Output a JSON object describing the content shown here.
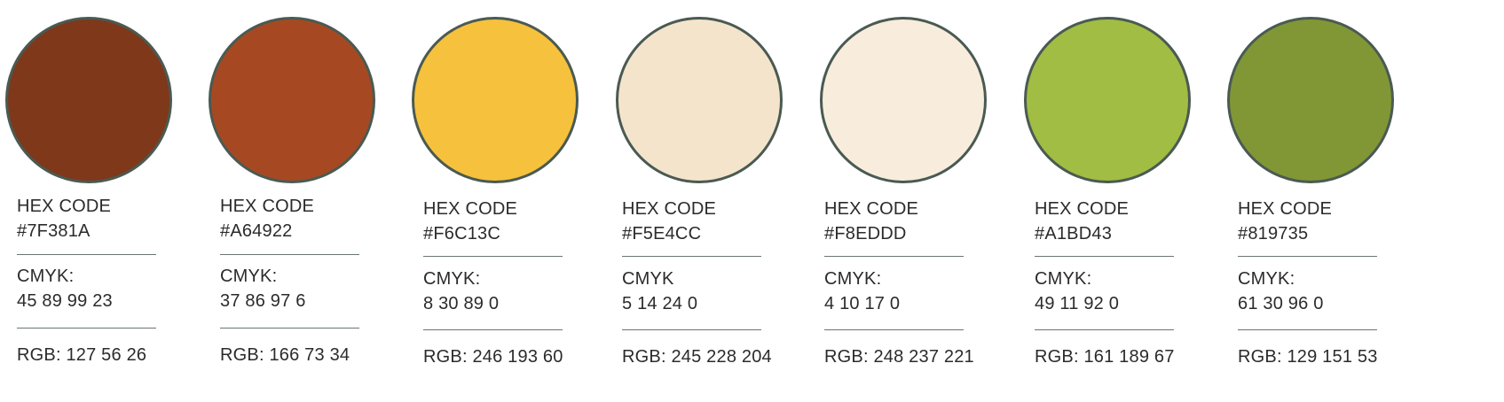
{
  "swatches": [
    {
      "color": "#7F381A",
      "hex_heading": "HEX CODE",
      "hex_value": "#7F381A",
      "cmyk_heading": "CMYK:",
      "cmyk_value": "45 89 99 23",
      "rgb": "RGB: 127 56 26"
    },
    {
      "color": "#A64922",
      "hex_heading": "HEX CODE",
      "hex_value": "#A64922",
      "cmyk_heading": "CMYK:",
      "cmyk_value": "37 86 97 6",
      "rgb": "RGB: 166 73 34"
    },
    {
      "color": "#F6C13C",
      "hex_heading": "HEX CODE",
      "hex_value": "#F6C13C",
      "cmyk_heading": "CMYK:",
      "cmyk_value": "8 30 89 0",
      "rgb": "RGB: 246 193 60"
    },
    {
      "color": "#F5E4CC",
      "hex_heading": "HEX CODE",
      "hex_value": "#F5E4CC",
      "cmyk_heading": "CMYK",
      "cmyk_value": "5 14 24 0",
      "rgb": "RGB: 245 228 204"
    },
    {
      "color": "#F8EDDD",
      "hex_heading": "HEX CODE",
      "hex_value": "#F8EDDD",
      "cmyk_heading": "CMYK:",
      "cmyk_value": "4 10 17 0",
      "rgb": "RGB: 248 237 221"
    },
    {
      "color": "#A1BD43",
      "hex_heading": "HEX CODE",
      "hex_value": "#A1BD43",
      "cmyk_heading": "CMYK:",
      "cmyk_value": "49 11 92 0",
      "rgb": "RGB: 161 189 67"
    },
    {
      "color": "#819735",
      "hex_heading": "HEX CODE",
      "hex_value": "#819735",
      "cmyk_heading": "CMYK:",
      "cmyk_value": "61 30 96 0",
      "rgb": "RGB: 129 151 53"
    }
  ]
}
